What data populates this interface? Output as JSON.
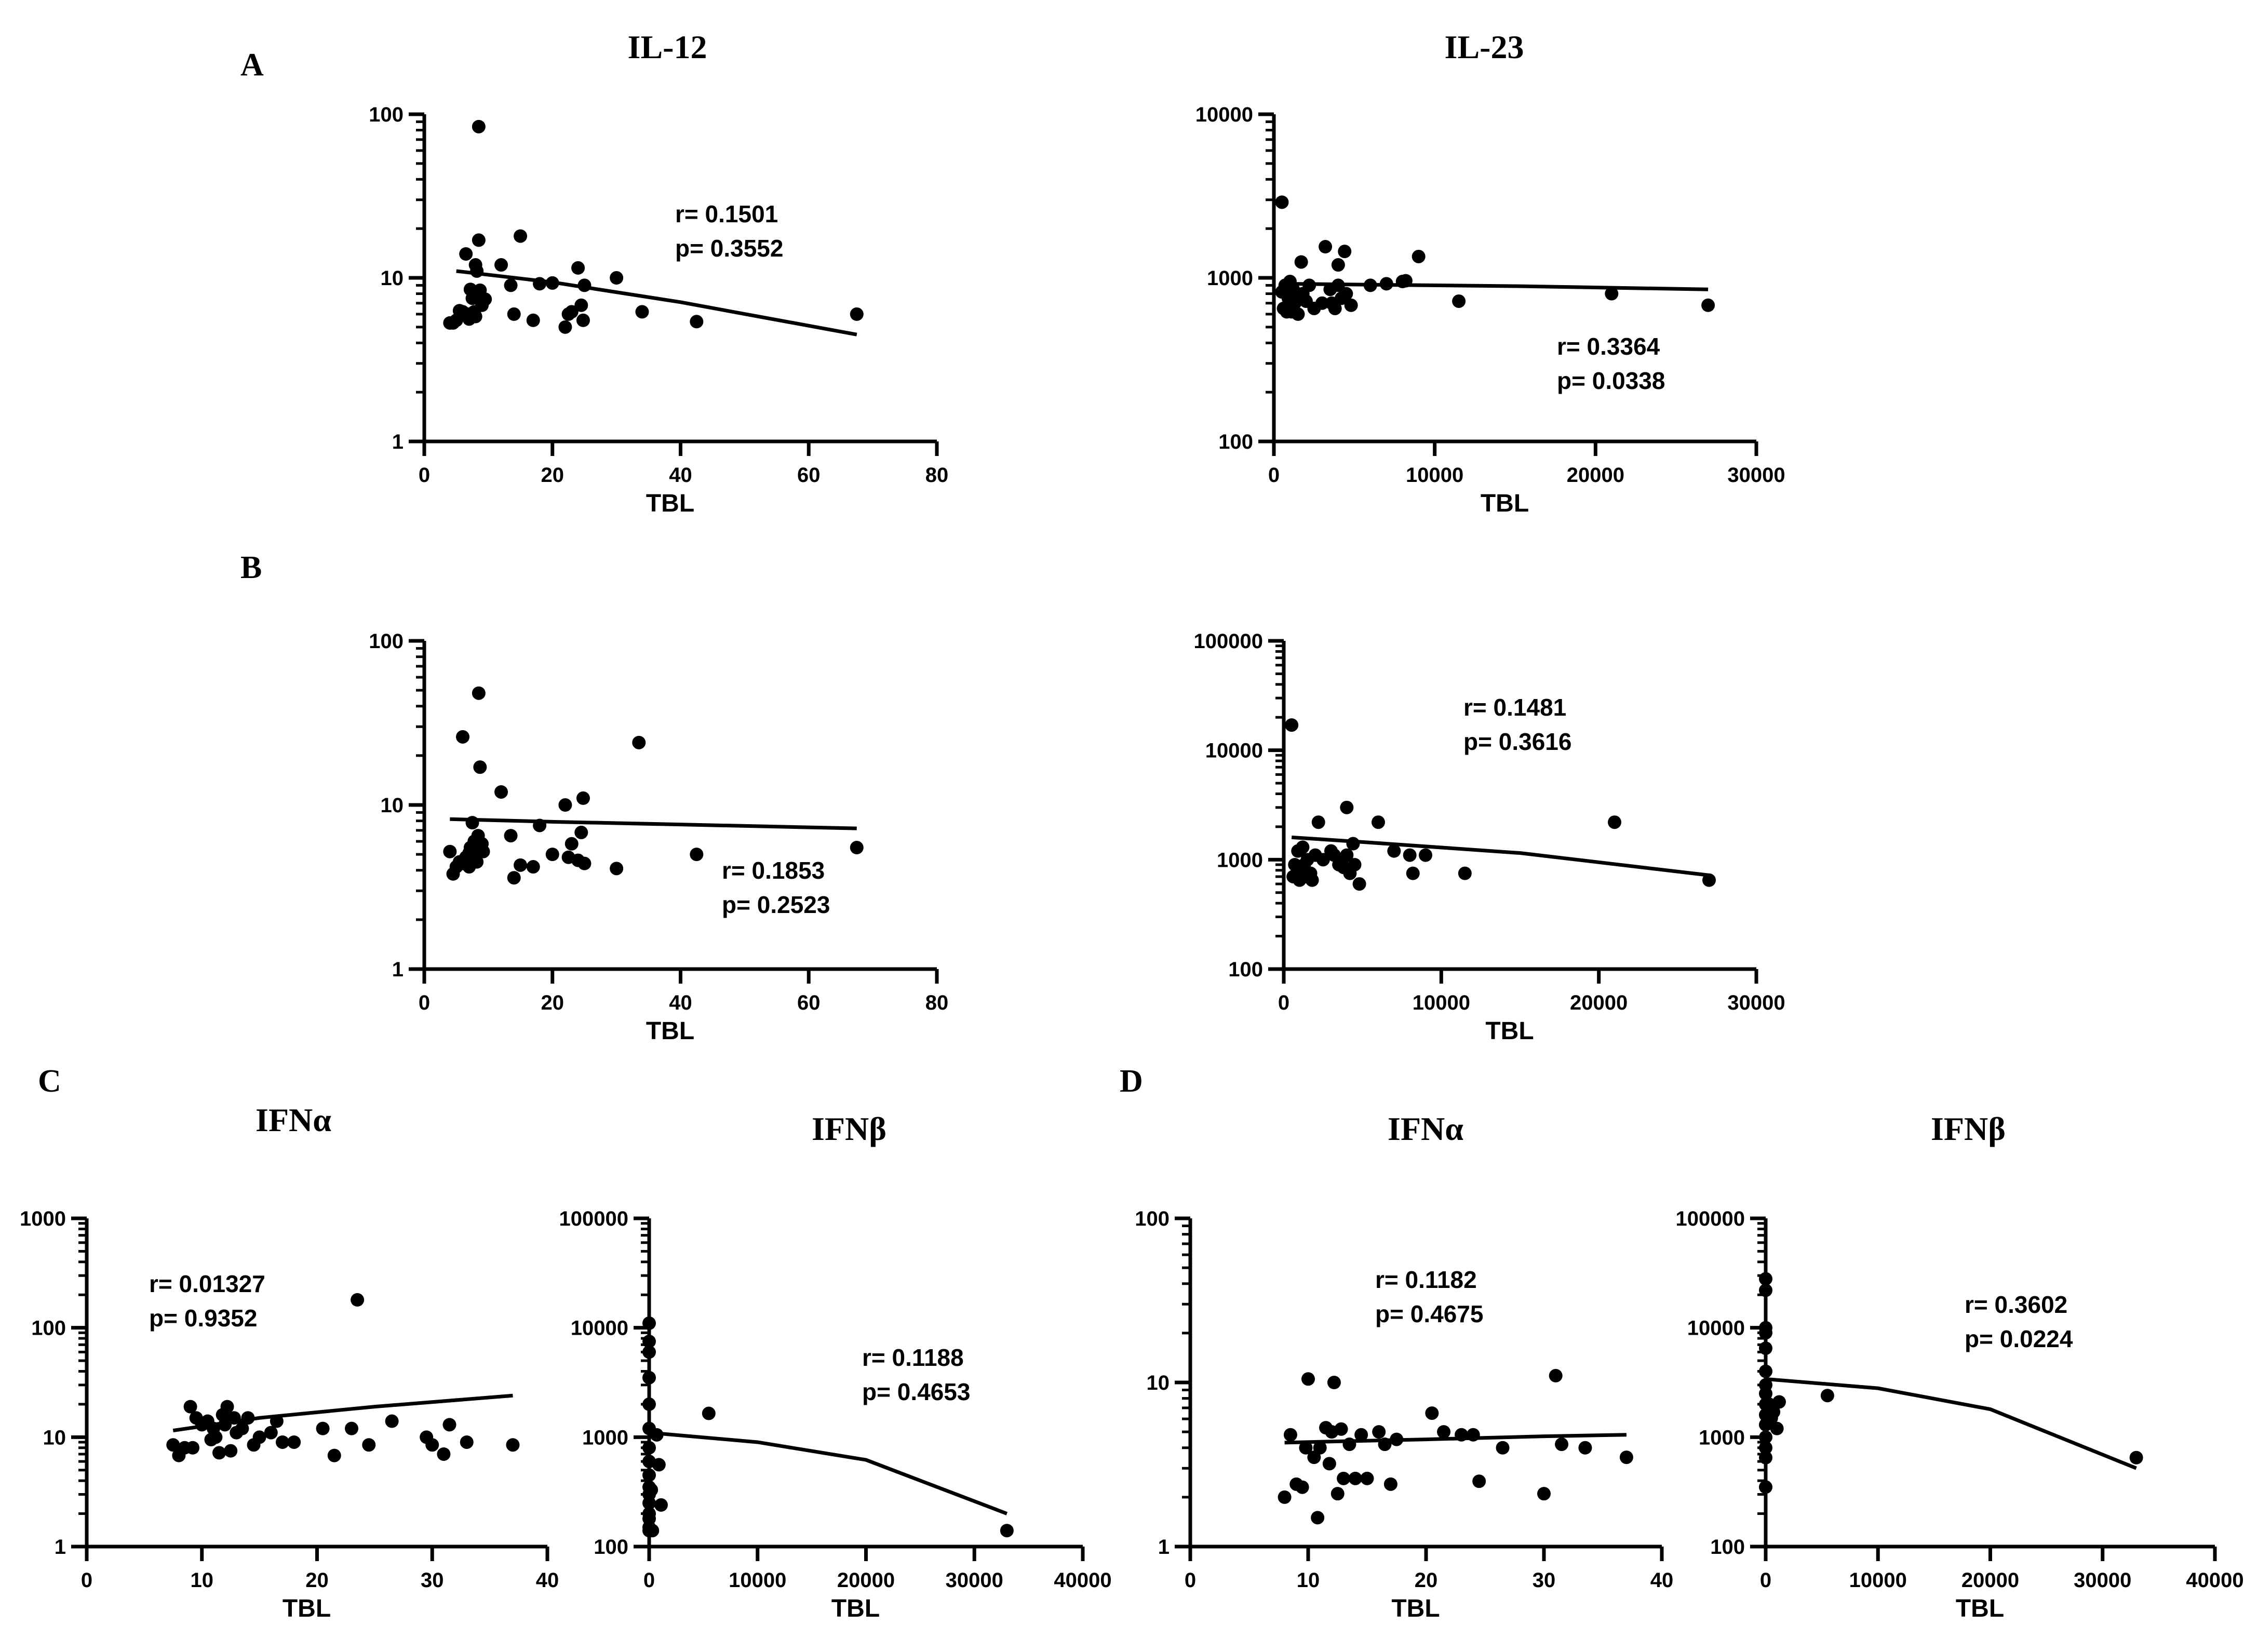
{
  "panel_labels": [
    "A",
    "B",
    "C",
    "D"
  ],
  "chart_data": [
    {
      "id": "A1",
      "type": "scatter",
      "title": "IL-12",
      "xlabel": "TBL",
      "ylabel": "",
      "xlim": [
        0,
        80
      ],
      "ylim": [
        1,
        100
      ],
      "yscale": "log",
      "xticks": [
        "0",
        "20",
        "40",
        "60",
        "80"
      ],
      "yticks": [
        "1",
        "10",
        "100"
      ],
      "annotation": [
        "r= 0.1501",
        "p= 0.3552"
      ],
      "points": [
        [
          4,
          5.3
        ],
        [
          4.5,
          5.3
        ],
        [
          5,
          5.5
        ],
        [
          5.5,
          6.3
        ],
        [
          6,
          6.2
        ],
        [
          6.5,
          14
        ],
        [
          7,
          5.6
        ],
        [
          7,
          6
        ],
        [
          7.2,
          8.5
        ],
        [
          7.5,
          7.5
        ],
        [
          7.8,
          6.2
        ],
        [
          8,
          12
        ],
        [
          8,
          5.8
        ],
        [
          8.2,
          11
        ],
        [
          8.5,
          17
        ],
        [
          8.5,
          84
        ],
        [
          8.7,
          8.4
        ],
        [
          9,
          6.8
        ],
        [
          9.2,
          7.3
        ],
        [
          9.5,
          7.4
        ],
        [
          12,
          12
        ],
        [
          13.5,
          9
        ],
        [
          14,
          6
        ],
        [
          15,
          18
        ],
        [
          17,
          5.5
        ],
        [
          18,
          9.2
        ],
        [
          20,
          9.3
        ],
        [
          22,
          5
        ],
        [
          22.5,
          6
        ],
        [
          23,
          6.2
        ],
        [
          24,
          11.5
        ],
        [
          24.5,
          6.8
        ],
        [
          24.8,
          5.5
        ],
        [
          25,
          9
        ],
        [
          30,
          10
        ],
        [
          34,
          6.2
        ],
        [
          42.5,
          5.4
        ],
        [
          67.5,
          6
        ]
      ],
      "fit": [
        [
          5,
          11
        ],
        [
          20,
          9.4
        ],
        [
          40,
          7.1
        ],
        [
          67.5,
          4.5
        ]
      ]
    },
    {
      "id": "A2",
      "type": "scatter",
      "title": "IL-23",
      "xlabel": "TBL",
      "ylabel": "",
      "xlim": [
        0,
        30000
      ],
      "ylim": [
        100,
        10000
      ],
      "yscale": "log",
      "xticks": [
        "0",
        "10000",
        "20000",
        "30000"
      ],
      "yticks": [
        "100",
        "1000",
        "10000"
      ],
      "annotation": [
        "r= 0.3364",
        "p= 0.0338"
      ],
      "points": [
        [
          500,
          2900
        ],
        [
          500,
          820
        ],
        [
          600,
          650
        ],
        [
          700,
          900
        ],
        [
          800,
          620
        ],
        [
          900,
          750
        ],
        [
          1000,
          950
        ],
        [
          1100,
          620
        ],
        [
          1200,
          850
        ],
        [
          1300,
          700
        ],
        [
          1400,
          780
        ],
        [
          1500,
          600
        ],
        [
          1700,
          1250
        ],
        [
          1800,
          800
        ],
        [
          2000,
          720
        ],
        [
          2200,
          900
        ],
        [
          2500,
          650
        ],
        [
          3000,
          700
        ],
        [
          3200,
          1550
        ],
        [
          3500,
          850
        ],
        [
          3600,
          700
        ],
        [
          3800,
          650
        ],
        [
          4000,
          1200
        ],
        [
          4000,
          900
        ],
        [
          4200,
          750
        ],
        [
          4400,
          1450
        ],
        [
          4500,
          800
        ],
        [
          4800,
          680
        ],
        [
          6000,
          900
        ],
        [
          7000,
          920
        ],
        [
          8000,
          950
        ],
        [
          8200,
          960
        ],
        [
          9000,
          1350
        ],
        [
          11500,
          720
        ],
        [
          21000,
          800
        ],
        [
          27000,
          680
        ]
      ],
      "fit": [
        [
          500,
          920
        ],
        [
          5000,
          910
        ],
        [
          15000,
          890
        ],
        [
          27000,
          850
        ]
      ]
    },
    {
      "id": "B1",
      "type": "scatter",
      "title": "",
      "xlabel": "TBL",
      "ylabel": "",
      "xlim": [
        0,
        80
      ],
      "ylim": [
        1,
        100
      ],
      "yscale": "log",
      "xticks": [
        "0",
        "20",
        "40",
        "60",
        "80"
      ],
      "yticks": [
        "1",
        "10",
        "100"
      ],
      "annotation": [
        "r= 0.1853",
        "p= 0.2523"
      ],
      "points": [
        [
          4,
          5.2
        ],
        [
          4.5,
          3.8
        ],
        [
          5,
          4.2
        ],
        [
          5.5,
          4.5
        ],
        [
          6,
          26
        ],
        [
          6,
          4.4
        ],
        [
          6.5,
          4.8
        ],
        [
          7,
          5.1
        ],
        [
          7,
          4.2
        ],
        [
          7.2,
          5.5
        ],
        [
          7.5,
          7.8
        ],
        [
          7.8,
          6
        ],
        [
          8,
          5
        ],
        [
          8.2,
          4.5
        ],
        [
          8.4,
          6.5
        ],
        [
          8.5,
          48
        ],
        [
          8.7,
          17
        ],
        [
          9,
          5.8
        ],
        [
          9.2,
          5.2
        ],
        [
          12,
          12
        ],
        [
          13.5,
          6.5
        ],
        [
          14,
          3.6
        ],
        [
          15,
          4.3
        ],
        [
          17,
          4.2
        ],
        [
          18,
          7.5
        ],
        [
          20,
          5
        ],
        [
          22,
          10
        ],
        [
          22.5,
          4.8
        ],
        [
          23,
          5.8
        ],
        [
          24,
          4.6
        ],
        [
          24.5,
          6.8
        ],
        [
          24.8,
          11
        ],
        [
          25,
          4.4
        ],
        [
          30,
          4.1
        ],
        [
          33.5,
          24
        ],
        [
          42.5,
          5
        ],
        [
          67.5,
          5.5
        ]
      ],
      "fit": [
        [
          4,
          8.2
        ],
        [
          20,
          7.9
        ],
        [
          40,
          7.6
        ],
        [
          67.5,
          7.2
        ]
      ]
    },
    {
      "id": "B2",
      "type": "scatter",
      "title": "",
      "xlabel": "TBL",
      "ylabel": "",
      "xlim": [
        0,
        30000
      ],
      "ylim": [
        100,
        100000
      ],
      "yscale": "log",
      "xticks": [
        "0",
        "10000",
        "20000",
        "30000"
      ],
      "yticks": [
        "100",
        "1000",
        "10000",
        "100000"
      ],
      "annotation": [
        "r= 0.1481",
        "p= 0.3616"
      ],
      "points": [
        [
          500,
          17000
        ],
        [
          600,
          700
        ],
        [
          700,
          900
        ],
        [
          900,
          1200
        ],
        [
          1000,
          650
        ],
        [
          1100,
          800
        ],
        [
          1200,
          1300
        ],
        [
          1300,
          900
        ],
        [
          1400,
          700
        ],
        [
          1500,
          1000
        ],
        [
          1700,
          750
        ],
        [
          1800,
          650
        ],
        [
          2000,
          1100
        ],
        [
          2200,
          2200
        ],
        [
          2500,
          1000
        ],
        [
          3000,
          1200
        ],
        [
          3200,
          1100
        ],
        [
          3500,
          900
        ],
        [
          3700,
          1000
        ],
        [
          3800,
          850
        ],
        [
          4000,
          3000
        ],
        [
          4000,
          1100
        ],
        [
          4200,
          750
        ],
        [
          4400,
          1400
        ],
        [
          4500,
          900
        ],
        [
          4800,
          600
        ],
        [
          6000,
          2200
        ],
        [
          7000,
          1200
        ],
        [
          8000,
          1100
        ],
        [
          8200,
          750
        ],
        [
          9000,
          1100
        ],
        [
          11500,
          750
        ],
        [
          21000,
          2200
        ],
        [
          27000,
          650
        ]
      ],
      "fit": [
        [
          500,
          1600
        ],
        [
          5000,
          1450
        ],
        [
          15000,
          1150
        ],
        [
          27000,
          720
        ]
      ]
    },
    {
      "id": "C1",
      "type": "scatter",
      "title": "IFNα",
      "xlabel": "TBL",
      "ylabel": "",
      "xlim": [
        0,
        40
      ],
      "ylim": [
        1,
        1000
      ],
      "yscale": "log",
      "xticks": [
        "0",
        "10",
        "20",
        "30",
        "40"
      ],
      "yticks": [
        "1",
        "10",
        "100",
        "1000"
      ],
      "annotation": [
        "r= 0.01327",
        "p= 0.9352"
      ],
      "points": [
        [
          7.5,
          8.5
        ],
        [
          8,
          6.8
        ],
        [
          8.5,
          8
        ],
        [
          9,
          19
        ],
        [
          9.2,
          8
        ],
        [
          9.5,
          15
        ],
        [
          10,
          13
        ],
        [
          10.5,
          14
        ],
        [
          10.8,
          9.5
        ],
        [
          11,
          12
        ],
        [
          11.2,
          10
        ],
        [
          11.5,
          7.2
        ],
        [
          11.8,
          16
        ],
        [
          12,
          13
        ],
        [
          12.2,
          19
        ],
        [
          12.5,
          7.5
        ],
        [
          12.8,
          15
        ],
        [
          13,
          11
        ],
        [
          13.5,
          12
        ],
        [
          14,
          15
        ],
        [
          14.5,
          8.5
        ],
        [
          15,
          10
        ],
        [
          16,
          11
        ],
        [
          16.5,
          14
        ],
        [
          17,
          9
        ],
        [
          18,
          9
        ],
        [
          20.5,
          12
        ],
        [
          21.5,
          6.8
        ],
        [
          23,
          12
        ],
        [
          23.5,
          180
        ],
        [
          24.5,
          8.5
        ],
        [
          26.5,
          14
        ],
        [
          29.5,
          10
        ],
        [
          30,
          8.5
        ],
        [
          31,
          7
        ],
        [
          31.5,
          13
        ],
        [
          33,
          9
        ],
        [
          37,
          8.5
        ]
      ],
      "fit": [
        [
          7.5,
          11.5
        ],
        [
          15,
          15
        ],
        [
          25,
          19
        ],
        [
          37,
          24
        ]
      ]
    },
    {
      "id": "C2",
      "type": "scatter",
      "title": "IFNβ",
      "xlabel": "TBL",
      "ylabel": "",
      "xlim": [
        0,
        40000
      ],
      "ylim": [
        100,
        100000
      ],
      "yscale": "log",
      "xticks": [
        "0",
        "10000",
        "20000",
        "30000",
        "40000"
      ],
      "yticks": [
        "100",
        "1000",
        "10000",
        "100000"
      ],
      "annotation": [
        "r= 0.1188",
        "p= 0.4653"
      ],
      "points": [
        [
          0,
          11000
        ],
        [
          0,
          7500
        ],
        [
          0,
          6000
        ],
        [
          0,
          3500
        ],
        [
          0,
          2000
        ],
        [
          0,
          1200
        ],
        [
          0,
          800
        ],
        [
          0,
          600
        ],
        [
          0,
          450
        ],
        [
          0,
          350
        ],
        [
          0,
          300
        ],
        [
          0,
          250
        ],
        [
          0,
          200
        ],
        [
          0,
          180
        ],
        [
          0,
          150
        ],
        [
          0,
          140
        ],
        [
          200,
          330
        ],
        [
          300,
          140
        ],
        [
          700,
          1050
        ],
        [
          900,
          560
        ],
        [
          1100,
          240
        ],
        [
          5500,
          1650
        ],
        [
          33000,
          140
        ]
      ],
      "fit": [
        [
          0,
          1100
        ],
        [
          10000,
          900
        ],
        [
          20000,
          620
        ],
        [
          33000,
          200
        ]
      ]
    },
    {
      "id": "D1",
      "type": "scatter",
      "title": "IFNα",
      "xlabel": "TBL",
      "ylabel": "",
      "xlim": [
        0,
        40
      ],
      "ylim": [
        1,
        100
      ],
      "yscale": "log",
      "xticks": [
        "0",
        "10",
        "20",
        "30",
        "40"
      ],
      "yticks": [
        "1",
        "10",
        "100"
      ],
      "annotation": [
        "r= 0.1182",
        "p= 0.4675"
      ],
      "points": [
        [
          8,
          2
        ],
        [
          8.5,
          4.8
        ],
        [
          9,
          2.4
        ],
        [
          9.5,
          2.3
        ],
        [
          9.8,
          4
        ],
        [
          10,
          10.5
        ],
        [
          10.5,
          3.5
        ],
        [
          10.8,
          1.5
        ],
        [
          11,
          4
        ],
        [
          11.5,
          5.3
        ],
        [
          11.8,
          3.2
        ],
        [
          12,
          5
        ],
        [
          12.2,
          10
        ],
        [
          12.5,
          2.1
        ],
        [
          12.8,
          5.2
        ],
        [
          13,
          2.6
        ],
        [
          13.5,
          4.2
        ],
        [
          14,
          2.6
        ],
        [
          14.5,
          4.8
        ],
        [
          15,
          2.6
        ],
        [
          16,
          5
        ],
        [
          16.5,
          4.2
        ],
        [
          17,
          2.4
        ],
        [
          17.5,
          4.5
        ],
        [
          20.5,
          6.5
        ],
        [
          21.5,
          5
        ],
        [
          23,
          4.8
        ],
        [
          24,
          4.8
        ],
        [
          24.5,
          2.5
        ],
        [
          26.5,
          4
        ],
        [
          30,
          2.1
        ],
        [
          31,
          11
        ],
        [
          31.5,
          4.2
        ],
        [
          33.5,
          4
        ],
        [
          37,
          3.5
        ]
      ],
      "fit": [
        [
          8,
          4.3
        ],
        [
          20,
          4.5
        ],
        [
          30,
          4.7
        ],
        [
          37,
          4.8
        ]
      ]
    },
    {
      "id": "D2",
      "type": "scatter",
      "title": "IFNβ",
      "xlabel": "TBL",
      "ylabel": "",
      "xlim": [
        0,
        40000
      ],
      "ylim": [
        100,
        100000
      ],
      "yscale": "log",
      "xticks": [
        "0",
        "10000",
        "20000",
        "30000",
        "40000"
      ],
      "yticks": [
        "100",
        "1000",
        "10000",
        "100000"
      ],
      "annotation": [
        "r= 0.3602",
        "p= 0.0224"
      ],
      "points": [
        [
          0,
          28000
        ],
        [
          0,
          22000
        ],
        [
          0,
          10000
        ],
        [
          0,
          9000
        ],
        [
          0,
          6500
        ],
        [
          0,
          4000
        ],
        [
          0,
          3000
        ],
        [
          0,
          2500
        ],
        [
          0,
          2000
        ],
        [
          0,
          1600
        ],
        [
          0,
          1300
        ],
        [
          0,
          1000
        ],
        [
          0,
          800
        ],
        [
          0,
          650
        ],
        [
          0,
          350
        ],
        [
          300,
          2000
        ],
        [
          500,
          1500
        ],
        [
          700,
          1700
        ],
        [
          1000,
          1200
        ],
        [
          1200,
          2100
        ],
        [
          5500,
          2400
        ],
        [
          33000,
          650
        ]
      ],
      "fit": [
        [
          0,
          3400
        ],
        [
          10000,
          2800
        ],
        [
          20000,
          1800
        ],
        [
          33000,
          520
        ]
      ]
    }
  ]
}
